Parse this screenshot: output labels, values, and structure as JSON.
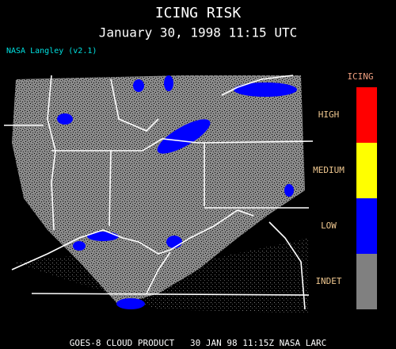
{
  "title": "ICING RISK",
  "subtitle": "January 30, 1998 11:15 UTC",
  "version": "NASA Langley (v2.1)",
  "legend": {
    "title": "ICING",
    "items": [
      {
        "label": "HIGH",
        "color": "#ff0000"
      },
      {
        "label": "MEDIUM",
        "color": "#ffff00"
      },
      {
        "label": "LOW",
        "color": "#0000ff"
      },
      {
        "label": "INDET",
        "color": "#808080"
      }
    ]
  },
  "footer": "GOES-8 CLOUD PRODUCT   30 JAN 98 11:15Z NASA LARC"
}
